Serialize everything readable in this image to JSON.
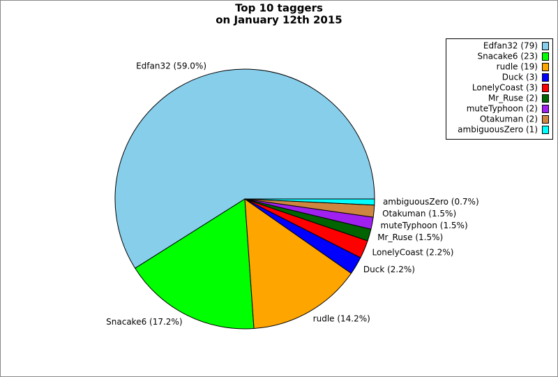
{
  "chart_data": {
    "type": "pie",
    "title": [
      "Top 10 taggers",
      "on January 12th 2015"
    ],
    "categories": [
      "Edfan32",
      "Snacake6",
      "rudle",
      "Duck",
      "LonelyCoast",
      "Mr_Ruse",
      "muteTyphoon",
      "Otakuman",
      "ambiguousZero"
    ],
    "values": [
      79,
      23,
      19,
      3,
      3,
      2,
      2,
      2,
      1
    ],
    "legend_labels": [
      "Edfan32 (79)",
      "Snacake6 (23)",
      "rudle (19)",
      "Duck (3)",
      "LonelyCoast (3)",
      "Mr_Ruse (2)",
      "muteTyphoon (2)",
      "Otakuman (2)",
      "ambiguousZero (1)"
    ],
    "slice_labels": [
      "Edfan32 (59.0%)",
      "Snacake6 (17.2%)",
      "rudle (14.2%)",
      "Duck (2.2%)",
      "LonelyCoast (2.2%)",
      "Mr_Ruse (1.5%)",
      "muteTyphoon (1.5%)",
      "Otakuman (1.5%)",
      "ambiguousZero (0.7%)"
    ],
    "colors": [
      "#87ceeb",
      "#00ff00",
      "#ffa500",
      "#0000ff",
      "#ff0000",
      "#006400",
      "#a020f0",
      "#cd853f",
      "#00ffff"
    ],
    "legend": "top-right"
  }
}
